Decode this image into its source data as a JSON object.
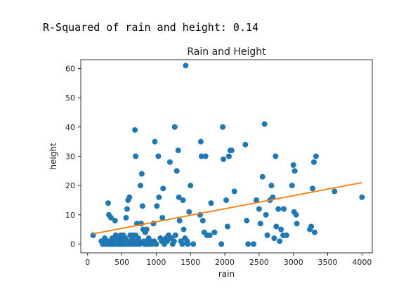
{
  "output_text": "R-Squared of rain and height: 0.14",
  "colors": {
    "points": "#1f77b4",
    "fit_line": "#ff7f0e",
    "axis": "#000000"
  },
  "chart_data": {
    "type": "scatter",
    "title": "Rain and Height",
    "xlabel": "rain",
    "ylabel": "height",
    "xlim": [
      -100,
      4150
    ],
    "ylim": [
      -3,
      63
    ],
    "xticks": [
      0,
      500,
      1000,
      1500,
      2000,
      2500,
      3000,
      3500,
      4000
    ],
    "yticks": [
      0,
      10,
      20,
      30,
      40,
      50,
      60
    ],
    "grid": false,
    "legend": "none",
    "series": [
      {
        "kind": "scatter",
        "points": [
          [
            80,
            3
          ],
          [
            200,
            1
          ],
          [
            220,
            0
          ],
          [
            230,
            0
          ],
          [
            250,
            2
          ],
          [
            260,
            1
          ],
          [
            270,
            0
          ],
          [
            280,
            0
          ],
          [
            290,
            1
          ],
          [
            300,
            0
          ],
          [
            300,
            14
          ],
          [
            310,
            10
          ],
          [
            320,
            1
          ],
          [
            330,
            0
          ],
          [
            340,
            9
          ],
          [
            350,
            0
          ],
          [
            360,
            2
          ],
          [
            370,
            0
          ],
          [
            380,
            1
          ],
          [
            390,
            0
          ],
          [
            400,
            8
          ],
          [
            410,
            3
          ],
          [
            420,
            1
          ],
          [
            430,
            0
          ],
          [
            440,
            2
          ],
          [
            450,
            0
          ],
          [
            460,
            1
          ],
          [
            470,
            0
          ],
          [
            480,
            3
          ],
          [
            490,
            2
          ],
          [
            500,
            1
          ],
          [
            500,
            0
          ],
          [
            510,
            0
          ],
          [
            520,
            3
          ],
          [
            530,
            1
          ],
          [
            540,
            0
          ],
          [
            550,
            2
          ],
          [
            560,
            9
          ],
          [
            570,
            0
          ],
          [
            575,
            12
          ],
          [
            580,
            1
          ],
          [
            590,
            15
          ],
          [
            600,
            0
          ],
          [
            610,
            16
          ],
          [
            620,
            3
          ],
          [
            630,
            1
          ],
          [
            640,
            0
          ],
          [
            650,
            2
          ],
          [
            660,
            3
          ],
          [
            670,
            1
          ],
          [
            680,
            0
          ],
          [
            690,
            39
          ],
          [
            700,
            3
          ],
          [
            700,
            30
          ],
          [
            710,
            1
          ],
          [
            720,
            7
          ],
          [
            730,
            0
          ],
          [
            740,
            2
          ],
          [
            750,
            1
          ],
          [
            760,
            0
          ],
          [
            770,
            20
          ],
          [
            780,
            7
          ],
          [
            790,
            24
          ],
          [
            800,
            13
          ],
          [
            810,
            5
          ],
          [
            820,
            1
          ],
          [
            830,
            0
          ],
          [
            840,
            4
          ],
          [
            850,
            0
          ],
          [
            860,
            5
          ],
          [
            870,
            1
          ],
          [
            880,
            0
          ],
          [
            890,
            2
          ],
          [
            900,
            0
          ],
          [
            920,
            1
          ],
          [
            940,
            0
          ],
          [
            960,
            7
          ],
          [
            970,
            1
          ],
          [
            980,
            35
          ],
          [
            1000,
            0
          ],
          [
            1010,
            13
          ],
          [
            1030,
            30
          ],
          [
            1040,
            16
          ],
          [
            1060,
            2
          ],
          [
            1080,
            1
          ],
          [
            1090,
            9
          ],
          [
            1100,
            19
          ],
          [
            1120,
            0
          ],
          [
            1140,
            2
          ],
          [
            1160,
            1
          ],
          [
            1180,
            3
          ],
          [
            1200,
            28
          ],
          [
            1220,
            2
          ],
          [
            1240,
            0
          ],
          [
            1260,
            1
          ],
          [
            1270,
            40
          ],
          [
            1280,
            3
          ],
          [
            1300,
            25
          ],
          [
            1320,
            32
          ],
          [
            1330,
            16
          ],
          [
            1340,
            8
          ],
          [
            1360,
            1
          ],
          [
            1380,
            0
          ],
          [
            1390,
            15
          ],
          [
            1400,
            5
          ],
          [
            1420,
            2
          ],
          [
            1430,
            61
          ],
          [
            1450,
            1
          ],
          [
            1460,
            0
          ],
          [
            1480,
            11
          ],
          [
            1500,
            20
          ],
          [
            1540,
            0
          ],
          [
            1640,
            10
          ],
          [
            1650,
            35
          ],
          [
            1660,
            30
          ],
          [
            1680,
            8
          ],
          [
            1700,
            4
          ],
          [
            1720,
            30
          ],
          [
            1740,
            3
          ],
          [
            1780,
            3
          ],
          [
            1800,
            14
          ],
          [
            1850,
            4
          ],
          [
            1950,
            0
          ],
          [
            1970,
            40
          ],
          [
            1980,
            29
          ],
          [
            2020,
            15
          ],
          [
            2040,
            6
          ],
          [
            2060,
            30
          ],
          [
            2080,
            32
          ],
          [
            2100,
            32
          ],
          [
            2140,
            18
          ],
          [
            2300,
            34
          ],
          [
            2320,
            8
          ],
          [
            2340,
            0
          ],
          [
            2420,
            0
          ],
          [
            2460,
            15
          ],
          [
            2500,
            12
          ],
          [
            2520,
            7
          ],
          [
            2550,
            23
          ],
          [
            2580,
            41
          ],
          [
            2600,
            10
          ],
          [
            2620,
            3
          ],
          [
            2660,
            15
          ],
          [
            2680,
            20
          ],
          [
            2700,
            16
          ],
          [
            2720,
            2
          ],
          [
            2740,
            30
          ],
          [
            2750,
            6
          ],
          [
            2780,
            12
          ],
          [
            2800,
            1
          ],
          [
            2820,
            5
          ],
          [
            2850,
            3
          ],
          [
            2860,
            12
          ],
          [
            2900,
            3
          ],
          [
            2980,
            20
          ],
          [
            3000,
            27
          ],
          [
            3010,
            11
          ],
          [
            3020,
            25
          ],
          [
            3040,
            10
          ],
          [
            3050,
            7
          ],
          [
            3240,
            5
          ],
          [
            3260,
            6
          ],
          [
            3280,
            19
          ],
          [
            3300,
            28
          ],
          [
            3310,
            4
          ],
          [
            3330,
            30
          ],
          [
            3600,
            18
          ],
          [
            4000,
            16
          ]
        ]
      },
      {
        "kind": "line",
        "x": [
          80,
          4000
        ],
        "y": [
          3.5,
          21
        ]
      }
    ]
  }
}
